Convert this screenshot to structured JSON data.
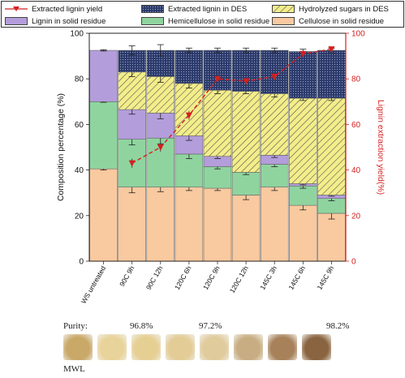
{
  "chart_data": {
    "type": "bar",
    "stacked": true,
    "categories": [
      "WS untreated",
      "90C 9h",
      "90C 12h",
      "120C 6h",
      "120C 9h",
      "120C 12h",
      "145C 3h",
      "145C 6h",
      "145C 9h"
    ],
    "series": [
      {
        "name": "Cellulose in solid residue",
        "color": "#f9c99f",
        "pattern": "solid",
        "values": [
          40.5,
          32.5,
          32.5,
          32.5,
          32.0,
          29.0,
          32.5,
          24.5,
          21.0
        ],
        "errors": [
          0.5,
          2.5,
          2.0,
          1.5,
          1.0,
          2.0,
          1.5,
          2.0,
          2.5
        ]
      },
      {
        "name": "Hemicellulose in solid residue",
        "color": "#8fd49f",
        "pattern": "solid",
        "values": [
          29.5,
          21.0,
          21.5,
          14.5,
          9.5,
          10.0,
          10.0,
          8.5,
          6.5
        ],
        "errors": [
          0.3,
          2.5,
          2.5,
          2.0,
          1.0,
          1.0,
          1.0,
          1.0,
          1.0
        ]
      },
      {
        "name": "Lignin in solid residue",
        "color": "#b39ddb",
        "pattern": "solid",
        "values": [
          22.5,
          13.0,
          11.0,
          8.0,
          4.5,
          0,
          4.0,
          1.0,
          1.5
        ],
        "errors": [
          0.3,
          2.0,
          2.5,
          2.0,
          1.0,
          0,
          1.0,
          0.5,
          0.5
        ]
      },
      {
        "name": "Hydrolyzed sugars in DES",
        "color": "#f3ed8a",
        "pattern": "diagonal",
        "values": [
          0,
          16.5,
          16.0,
          23.0,
          29.0,
          35.5,
          27.0,
          37.5,
          42.5
        ],
        "errors": [
          0,
          2.0,
          2.5,
          2.0,
          1.5,
          1.0,
          1.5,
          1.0,
          1.0
        ]
      },
      {
        "name": "Extracted lignin in DES",
        "color": "#2b3a6b",
        "pattern": "dots",
        "values": [
          0,
          9.5,
          11.5,
          14.5,
          17.5,
          18.0,
          19.0,
          20.5,
          21.0
        ],
        "errors": [
          0,
          2.0,
          2.5,
          1.0,
          1.0,
          1.0,
          1.0,
          1.0,
          1.0
        ]
      }
    ],
    "line_series": {
      "name": "Extracted lignin yield",
      "color": "#d42020",
      "axis": "right",
      "values": [
        null,
        43.0,
        50.0,
        64.0,
        80.0,
        79.0,
        81.0,
        91.0,
        93.0
      ],
      "errors": [
        null,
        2.0,
        2.0,
        2.0,
        2.0,
        2.0,
        1.5,
        1.0,
        1.0
      ]
    },
    "ylabel": "Composition percentage (%)",
    "y2label": "Lignin extraction yield(%)",
    "ylim": [
      0,
      100
    ],
    "y2lim": [
      0,
      100
    ],
    "yticks": [
      "0",
      "20",
      "40",
      "60",
      "80",
      "100"
    ],
    "y2ticks": [
      "0",
      "20",
      "40",
      "60",
      "80",
      "100"
    ],
    "legend_position": "top",
    "legend_order": [
      "Extracted lignin yield",
      "Extracted lignin in DES",
      "Hydrolyzed sugars in DES",
      "Lignin in solid residue",
      "Hemicellulose in solid residue",
      "Cellulose in solid residue"
    ]
  },
  "purity": {
    "label": "Purity:",
    "values": [
      "96.8%",
      "97.2%",
      "98.2%"
    ]
  },
  "samples": {
    "colors": [
      "#c9a868",
      "#e8d39a",
      "#e6cf93",
      "#e3cc96",
      "#e0cb9c",
      "#c8ad82",
      "#a7815a",
      "#8a6440"
    ],
    "label": "MWL"
  }
}
